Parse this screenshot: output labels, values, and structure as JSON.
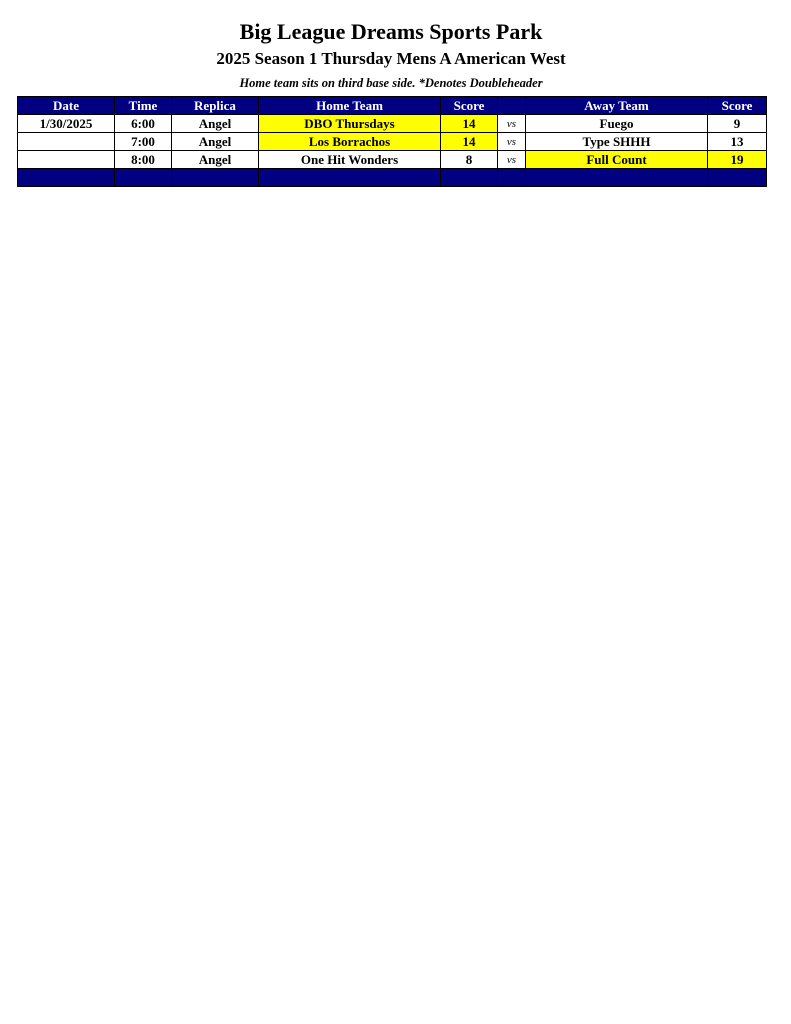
{
  "title": "Big League Dreams Sports Park",
  "subtitle": "2025 Season 1 Thursday Mens A American West",
  "note": "Home team sits on third base side.  *Denotes Doubleheader",
  "headers": [
    "Date",
    "Time",
    "Replica",
    "Home Team",
    "Score",
    "",
    "Away Team",
    "Score"
  ],
  "highlight_color": "#ffff00",
  "header_color": "#000080",
  "rows": [
    {
      "date": "1/30/2025",
      "time": "6:00",
      "replica": "Angel",
      "home": "DBO Thursdays",
      "home_score": "14",
      "vs": "vs",
      "away": "Fuego",
      "away_score": "9",
      "winner": "home"
    },
    {
      "date": "",
      "time": "7:00",
      "replica": "Angel",
      "home": "Los Borrachos",
      "home_score": "14",
      "vs": "vs",
      "away": "Type SHHH",
      "away_score": "13",
      "winner": "home"
    },
    {
      "date": "",
      "time": "8:00",
      "replica": "Angel",
      "home": "One Hit Wonders",
      "home_score": "8",
      "vs": "vs",
      "away": "Full Count",
      "away_score": "19",
      "winner": "away"
    }
  ]
}
